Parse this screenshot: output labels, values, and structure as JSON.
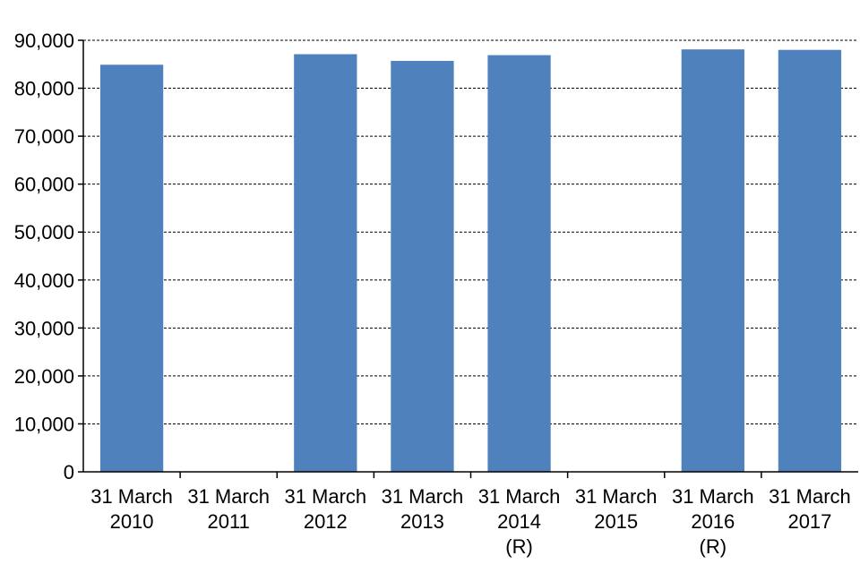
{
  "chart_data": {
    "type": "bar",
    "categories": [
      [
        "31 March",
        "2010"
      ],
      [
        "31 March",
        "2011"
      ],
      [
        "31 March",
        "2012"
      ],
      [
        "31 March",
        "2013"
      ],
      [
        "31 March",
        "2014",
        "(R)"
      ],
      [
        "31 March",
        "2015"
      ],
      [
        "31 March",
        "2016",
        "(R)"
      ],
      [
        "31 March",
        "2017"
      ]
    ],
    "values": [
      84900,
      null,
      87100,
      85700,
      86900,
      null,
      88100,
      88000
    ],
    "ylim": [
      0,
      90000
    ],
    "yticks": [
      0,
      10000,
      20000,
      30000,
      40000,
      50000,
      60000,
      70000,
      80000,
      90000
    ],
    "ytick_labels": [
      "0",
      "10,000",
      "20,000",
      "30,000",
      "40,000",
      "50,000",
      "60,000",
      "70,000",
      "80,000",
      "90,000"
    ],
    "grid": "horizontal dashed",
    "bar_color": "#4f81bd"
  }
}
